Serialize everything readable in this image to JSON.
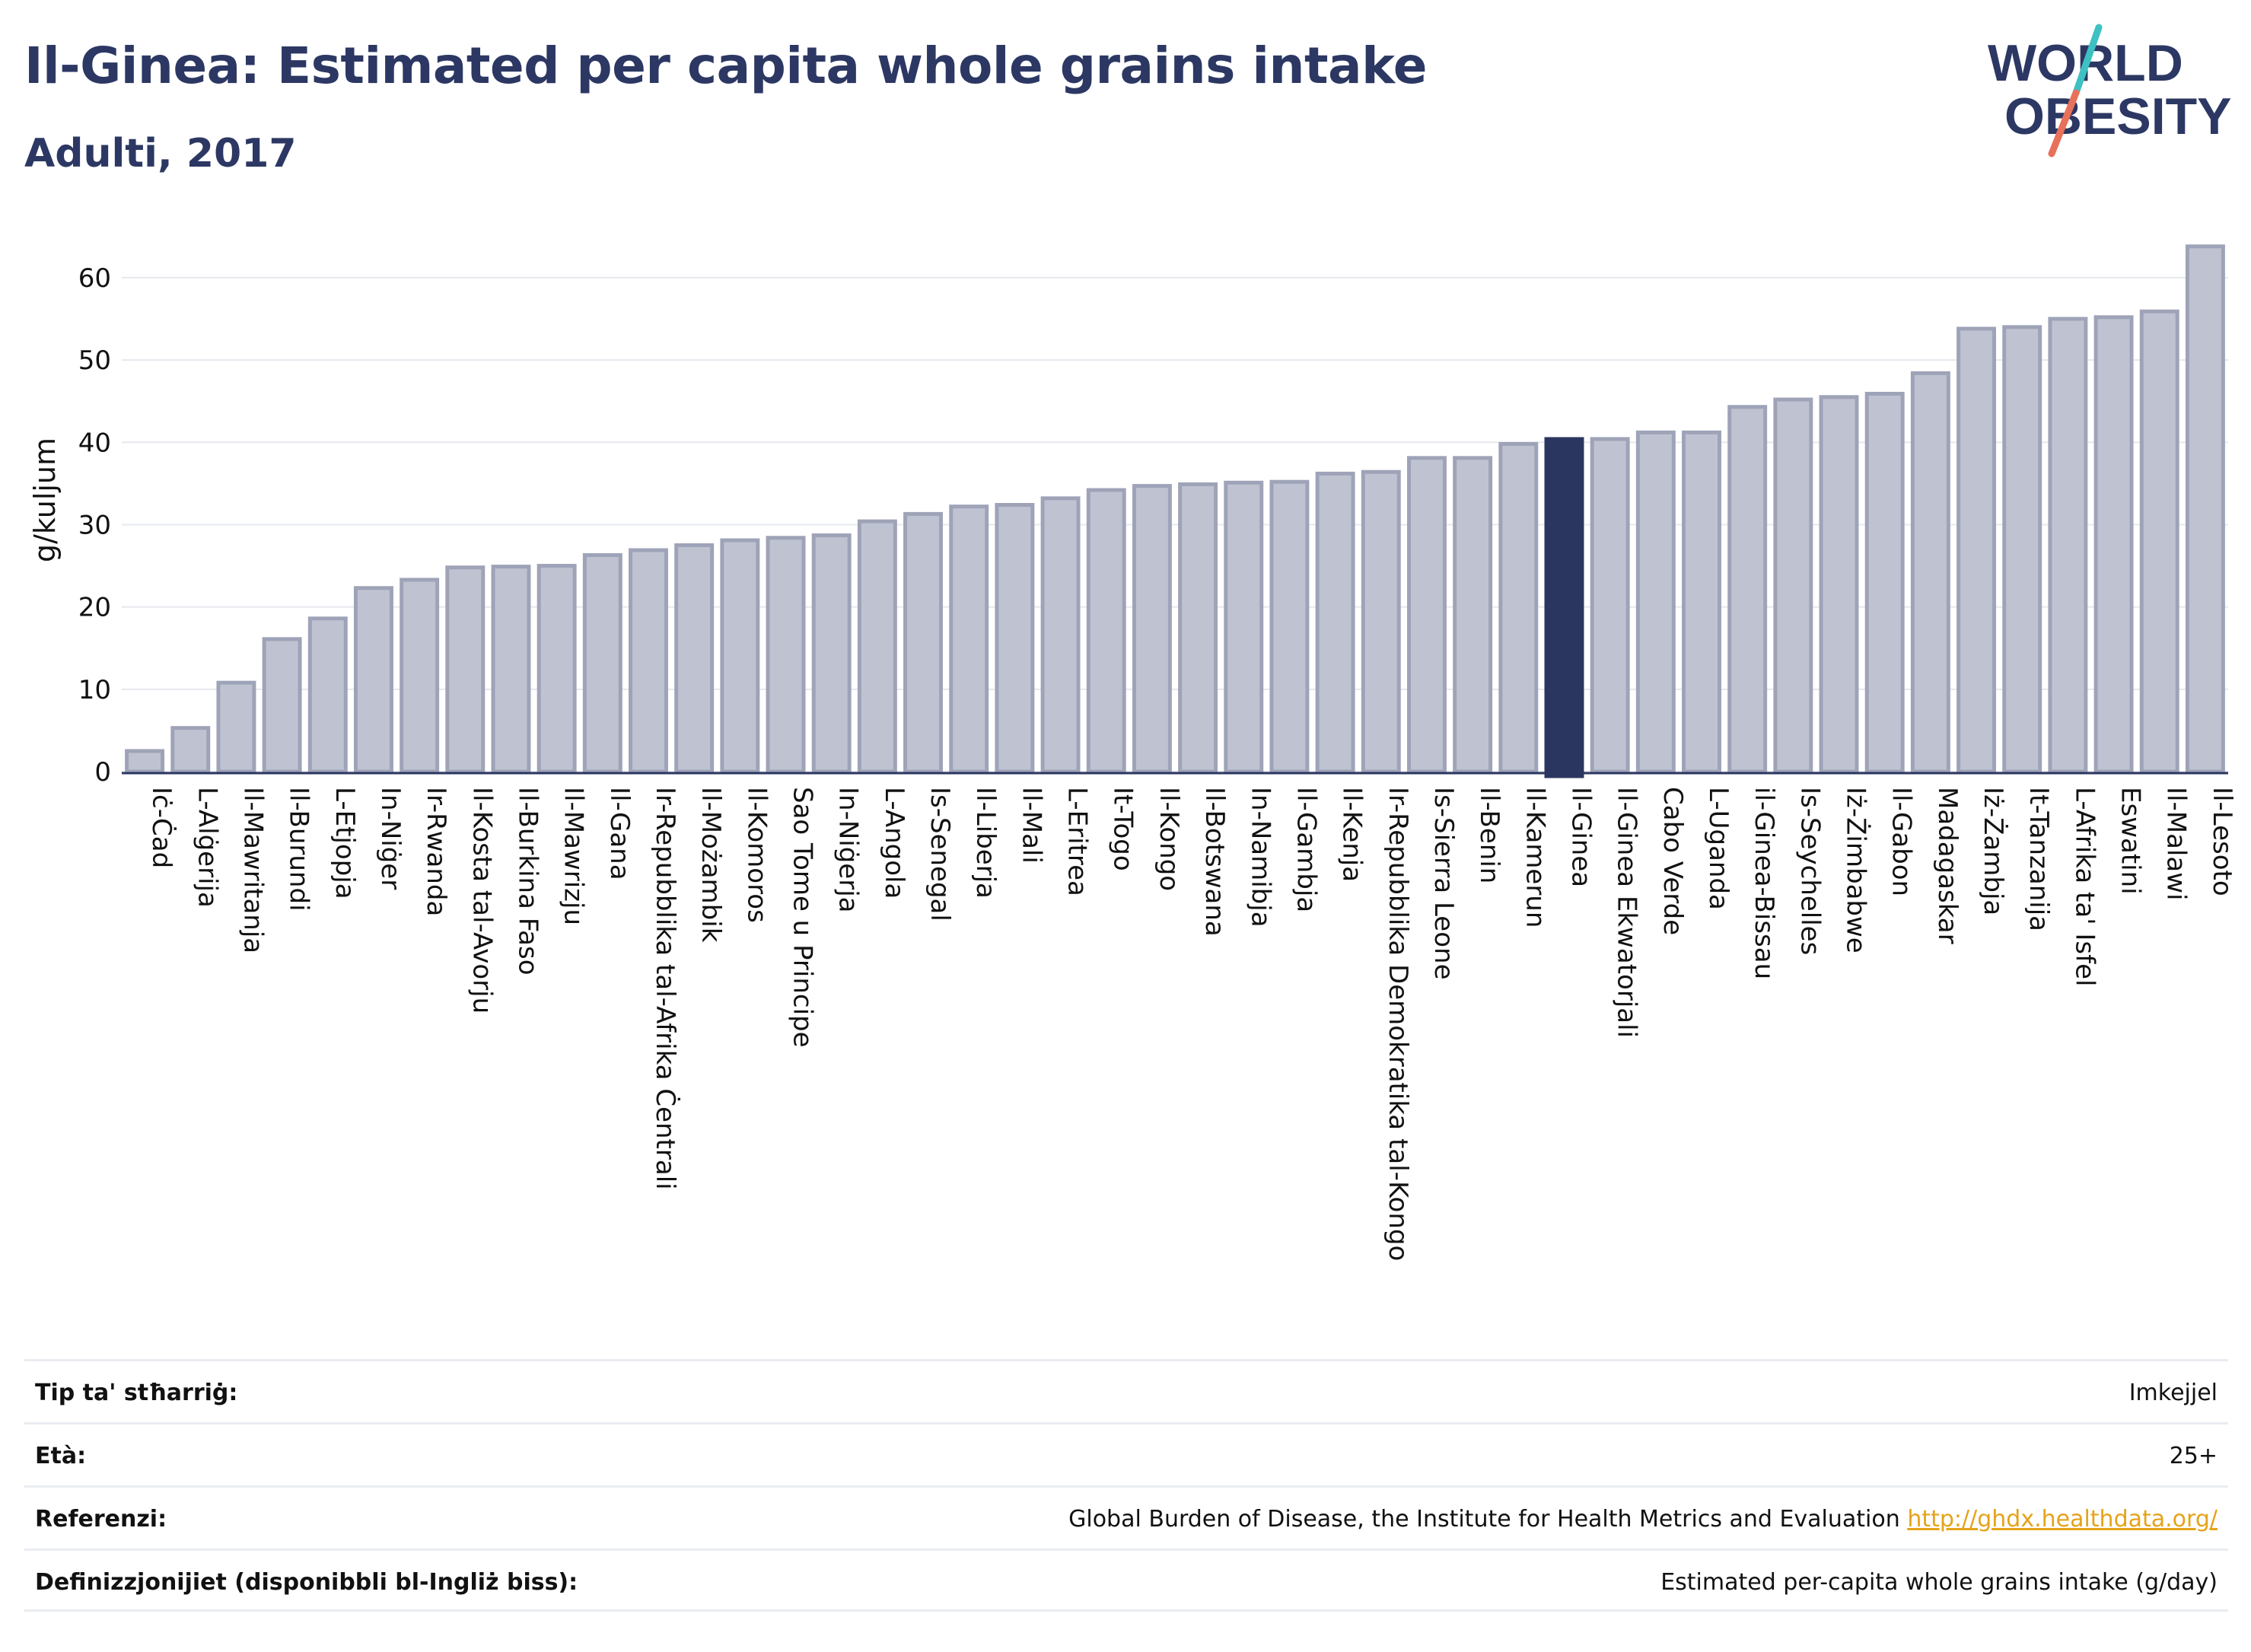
{
  "header": {
    "title": "Il-Ginea: Estimated per capita whole grains intake",
    "subtitle": "Adulti, 2017"
  },
  "logo": {
    "line1": "WORLD",
    "line2": "OBESITY",
    "accent_teal": "#3ec1c3",
    "accent_coral": "#e8715b"
  },
  "colors": {
    "bar": "#bfc3d1",
    "bar_stroke": "#9ea3b8",
    "highlight": "#2b3660",
    "axis_text": "#111111"
  },
  "chart_data": {
    "type": "bar",
    "title": "Il-Ginea: Estimated per capita whole grains intake",
    "subtitle": "Adulti, 2017",
    "ylabel": "g/kuljum",
    "xlabel": "",
    "ylim": [
      0,
      66
    ],
    "yticks": [
      0,
      10,
      20,
      30,
      40,
      50,
      60
    ],
    "grid": true,
    "highlight": "Il-Ginea",
    "categories": [
      "Iċ-Ċad",
      "L-Alġerija",
      "Il-Mawritanja",
      "Il-Burundi",
      "L-Etjopja",
      "In-Niġer",
      "Ir-Rwanda",
      "Il-Kosta tal-Avorju",
      "Il-Burkina Faso",
      "Il-Mawrizju",
      "Il-Gana",
      "Ir-Repubblika tal-Afrika Ċentrali",
      "Il-Możambik",
      "Il-Komoros",
      "Sao Tome u Principe",
      "In-Niġerja",
      "L-Angola",
      "Is-Senegal",
      "Il-Liberja",
      "Il-Mali",
      "L-Eritrea",
      "It-Togo",
      "Il-Kongo",
      "Il-Botswana",
      "In-Namibja",
      "Il-Gambja",
      "Il-Kenja",
      "Ir-Repubblika Demokratika tal-Kongo",
      "Is-Sierra Leone",
      "Il-Benin",
      "Il-Kamerun",
      "Il-Ginea",
      "Il-Ginea Ekwatorjali",
      "Cabo Verde",
      "L-Uganda",
      "il-Ginea-Bissau",
      "Is-Seychelles",
      "Iż-Żimbabwe",
      "Il-Gabon",
      "Madagaskar",
      "Iż-Żambja",
      "It-Tanzanija",
      "L-Afrika ta' Isfel",
      "Eswatini",
      "Il-Malawi",
      "Il-Lesoto"
    ],
    "values": [
      2.5,
      5.3,
      10.8,
      16.1,
      18.6,
      22.3,
      23.3,
      24.8,
      24.9,
      25.0,
      26.3,
      26.9,
      27.5,
      28.1,
      28.4,
      28.7,
      30.4,
      31.3,
      32.2,
      32.4,
      33.2,
      34.2,
      34.7,
      34.9,
      35.1,
      35.2,
      36.2,
      36.4,
      38.1,
      38.1,
      39.8,
      40.4,
      40.4,
      41.2,
      41.2,
      44.3,
      45.2,
      45.5,
      45.9,
      48.4,
      53.8,
      54.0,
      55.0,
      55.2,
      55.9,
      63.8
    ]
  },
  "info": {
    "rows": [
      {
        "label": "Tip ta' stħarriġ:",
        "value": "Imkejjel"
      },
      {
        "label": "Età:",
        "value": "25+"
      },
      {
        "label": "Referenzi:",
        "value": "Global Burden of Disease, the Institute for Health Metrics and Evaluation",
        "link": "http://ghdx.healthdata.org/"
      },
      {
        "label": "Definizzjonijiet (disponibbli bl-Ingliż biss):",
        "value": "Estimated per-capita whole grains intake (g/day)"
      }
    ]
  }
}
